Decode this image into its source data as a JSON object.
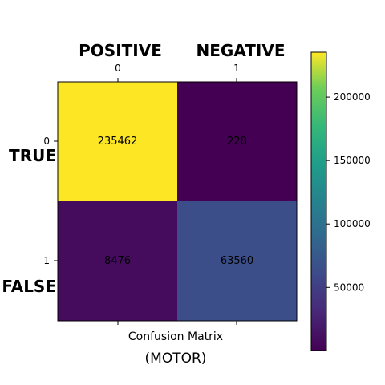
{
  "chart_data": {
    "type": "heatmap",
    "title": "Confusion Matrix",
    "subtitle": "(MOTOR)",
    "column_header_labels": [
      "POSITIVE",
      "NEGATIVE"
    ],
    "row_header_labels": [
      "TRUE",
      "FALSE"
    ],
    "x_tick_labels": [
      "0",
      "1"
    ],
    "y_tick_labels": [
      "0",
      "1"
    ],
    "cells": [
      [
        235462,
        228
      ],
      [
        8476,
        63560
      ]
    ],
    "cell_labels": [
      [
        "235462",
        "228"
      ],
      [
        "8476",
        "63560"
      ]
    ],
    "colorbar": {
      "colormap": "viridis",
      "range": [
        228,
        235462
      ],
      "ticks": [
        50000,
        100000,
        150000,
        200000
      ],
      "tick_labels": [
        "50000",
        "100000",
        "150000",
        "200000"
      ]
    }
  }
}
